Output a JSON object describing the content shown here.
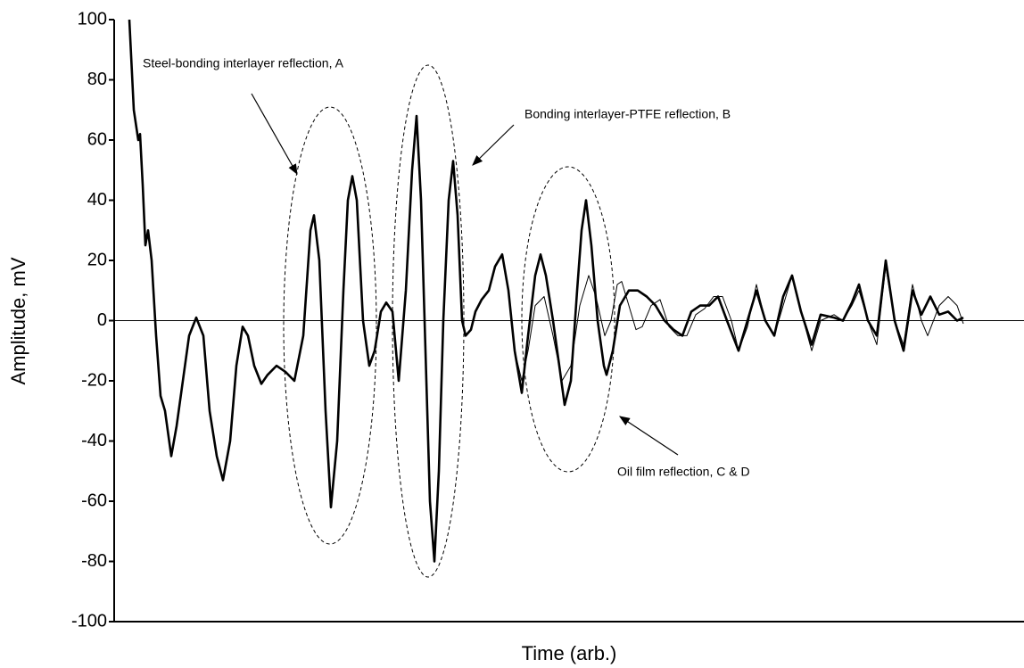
{
  "chart_data": {
    "type": "line",
    "xlabel": "Time (arb.)",
    "ylabel": "Amplitude, mV",
    "xlim": [
      0,
      1020
    ],
    "ylim": [
      -100,
      100
    ],
    "yticks": [
      -100,
      -80,
      -60,
      -40,
      -20,
      0,
      20,
      40,
      60,
      80,
      100
    ],
    "annotations": [
      "Steel-bonding interlayer reflection, A",
      "Bonding interlayer-PTFE reflection, B",
      "Oil film reflection, C & D"
    ],
    "series": [
      {
        "color": "#000000",
        "width": 2.6,
        "x": [
          17,
          22,
          27,
          29,
          32,
          35,
          38,
          42,
          47,
          52,
          57,
          64,
          70,
          77,
          84,
          92,
          100,
          107,
          115,
          122,
          130,
          137,
          144,
          150,
          157,
          165,
          172,
          182,
          192,
          202,
          212,
          220,
          224,
          230,
          237,
          243,
          250,
          257,
          262,
          267,
          272,
          279,
          286,
          292,
          299,
          305,
          312,
          319,
          327,
          334,
          339,
          344,
          350,
          354,
          359,
          364,
          369,
          375,
          380,
          385,
          390,
          394,
          400,
          405,
          412,
          420,
          427,
          435,
          442,
          449,
          457,
          464,
          472,
          478,
          484,
          492,
          499,
          505,
          512,
          519,
          524,
          529,
          535,
          542,
          549,
          552,
          559,
          567,
          577,
          587,
          597,
          607,
          617,
          627,
          637,
          647,
          657,
          667,
          677,
          687,
          700,
          710,
          720,
          730,
          740,
          750,
          760,
          770,
          782,
          792,
          807,
          817,
          827,
          835,
          845,
          855,
          865,
          875,
          885,
          895,
          905,
          915,
          925,
          935,
          945,
          952
        ],
        "values": [
          100,
          70,
          60,
          62,
          45,
          25,
          30,
          20,
          -5,
          -25,
          -30,
          -45,
          -35,
          -20,
          -5,
          1,
          -5,
          -30,
          -45,
          -53,
          -40,
          -15,
          -2,
          -5,
          -15,
          -21,
          -18,
          -15,
          -17,
          -20,
          -5,
          30,
          35,
          20,
          -30,
          -62,
          -40,
          10,
          40,
          48,
          40,
          0,
          -15,
          -10,
          3,
          6,
          3,
          -20,
          10,
          50,
          68,
          40,
          -20,
          -60,
          -80,
          -50,
          0,
          40,
          53,
          35,
          0,
          -5,
          -3,
          3,
          7,
          10,
          18,
          22,
          10,
          -10,
          -24,
          -5,
          15,
          22,
          15,
          0,
          -15,
          -28,
          -20,
          10,
          30,
          40,
          25,
          0,
          -15,
          -18,
          -10,
          5,
          10,
          10,
          8,
          5,
          0,
          -3,
          -5,
          3,
          5,
          5,
          8,
          0,
          -10,
          0,
          10,
          0,
          -5,
          8,
          15,
          3,
          -8,
          2,
          1,
          0,
          6,
          12,
          0,
          -5,
          20,
          0,
          -10,
          10,
          2,
          8,
          2,
          3,
          0,
          1
        ]
      },
      {
        "color": "#000000",
        "width": 1,
        "x": [
          449,
          457,
          464,
          472,
          482,
          492,
          502,
          512,
          522,
          532,
          540,
          550,
          557,
          564,
          569,
          577,
          585,
          592,
          602,
          612,
          622,
          632,
          642,
          652,
          662,
          672,
          682,
          692,
          700,
          710,
          720,
          730,
          740,
          750,
          760,
          770,
          782,
          792,
          807,
          817,
          827,
          835,
          845,
          855,
          865,
          875,
          885,
          895,
          905,
          912,
          925,
          935,
          945,
          952
        ],
        "values": [
          -10,
          -20,
          -10,
          5,
          8,
          -5,
          -20,
          -15,
          5,
          15,
          8,
          -5,
          0,
          12,
          13,
          5,
          -3,
          -2,
          5,
          7,
          -2,
          -5,
          -5,
          2,
          4,
          8,
          8,
          0,
          -10,
          -2,
          12,
          0,
          -5,
          5,
          15,
          3,
          -10,
          0,
          2,
          0,
          5,
          10,
          0,
          -8,
          18,
          0,
          -8,
          12,
          0,
          -5,
          5,
          8,
          5,
          -1
        ]
      }
    ]
  }
}
